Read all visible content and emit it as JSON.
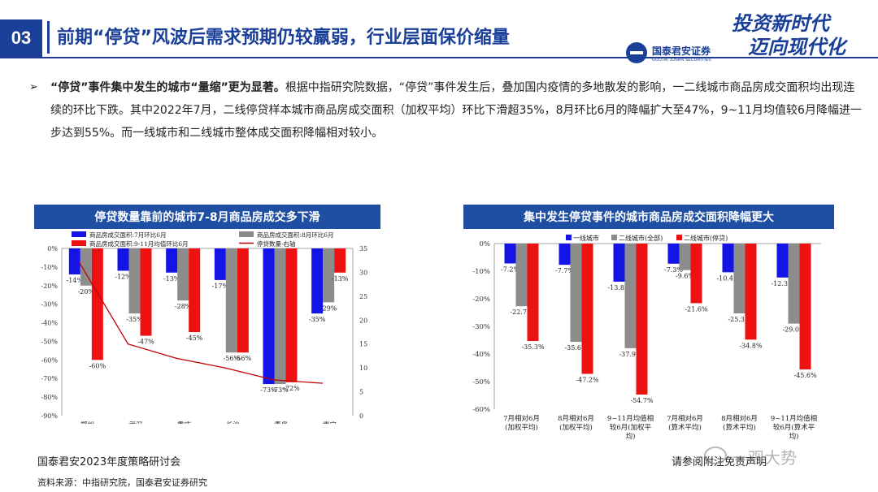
{
  "header": {
    "section_number": "03",
    "title": "前期“停贷”风波后需求预期仍较羸弱，行业层面保价缩量",
    "logo_cn": "国泰君安证券",
    "logo_en": "GUOTAI JUNAN SECURITIES",
    "slogan_line1": "投资新时代",
    "slogan_line2": "迈向现代化"
  },
  "body": {
    "bullet_symbol": "➢",
    "bold_lead": "“停贷”事件集中发生的城市“量缩”更为显著。",
    "text": "根据中指研究院数据，“停贷”事件发生后，叠加国内疫情的多地散发的影响，一二线城市商品房成交面积均出现连续的环比下跌。其中2022年7月，二线停贷样本城市商品房成交面积（加权平均）环比下滑超35%，8月环比6月的降幅扩大至47%，9~11月均值较6月降幅进一步达到55%。而一线城市和二线城市整体成交面积降幅相对较小。"
  },
  "footer": {
    "event": "国泰君安2023年度策略研讨会",
    "source": "资料来源：中指研究院，国泰君安证券研究",
    "disclaimer": "请参阅附注免责声明",
    "watermark": "一观大势"
  },
  "chart_data": [
    {
      "type": "bar",
      "title": "停贷数量靠前的城市7-8月商品房成交多下滑",
      "categories": [
        "郑州",
        "武汉",
        "重庆",
        "长沙",
        "青岛",
        "南宁"
      ],
      "series": [
        {
          "name": "商品房成交面积:7月环比6月",
          "color": "#1414e6",
          "values": [
            -14,
            -12,
            -13,
            -17,
            -73,
            -35
          ]
        },
        {
          "name": "商品房成交面积:8月环比6月",
          "color": "#8c8c8c",
          "values": [
            -20,
            -35,
            -28,
            -56,
            -73,
            -29
          ]
        },
        {
          "name": "商品房成交面积:9-11月均值环比6月",
          "color": "#ee1111",
          "values": [
            -60,
            -47,
            -45,
            -56,
            -72,
            -13
          ]
        }
      ],
      "line_series": {
        "name": "停贷数量-右轴",
        "color": "#c00000",
        "values": [
          32,
          15,
          12,
          10,
          7.5,
          6.8
        ]
      },
      "y_ticks_left": [
        "0%",
        "-10%",
        "-20%",
        "-30%",
        "-40%",
        "-50%",
        "-60%",
        "-70%",
        "-80%",
        "-90%"
      ],
      "y_ticks_right": [
        "35",
        "30",
        "25",
        "20",
        "15",
        "10",
        "5",
        "0"
      ],
      "ylim": [
        -90,
        0
      ],
      "ylim_right": [
        0,
        35
      ]
    },
    {
      "type": "bar",
      "title": "集中发生停贷事件的城市商品房成交面积降幅更大",
      "categories": [
        "7月相对6月\n(加权平均)",
        "8月相对6月\n(加权平均)",
        "9~11月均值相\n较6月(加权平\n均)",
        "7月相对6月\n(算术平均)",
        "8月相对6月\n(算术平均)",
        "9~11月均值相\n较6月(算术平\n均)"
      ],
      "series": [
        {
          "name": "一线城市",
          "color": "#1414e6",
          "values": [
            -7.2,
            -7.7,
            -13.8,
            -7.3,
            -10.4,
            -12.3
          ]
        },
        {
          "name": "二线城市(全部)",
          "color": "#8c8c8c",
          "values": [
            -22.7,
            -35.6,
            -37.9,
            -9.6,
            -25.3,
            -29.0
          ]
        },
        {
          "name": "二线城市(停贷)",
          "color": "#ee1111",
          "values": [
            -35.3,
            -47.2,
            -54.7,
            -21.6,
            -34.8,
            -45.6
          ]
        }
      ],
      "y_ticks": [
        "0%",
        "-10%",
        "-20%",
        "-30%",
        "-40%",
        "-50%",
        "-60%"
      ],
      "ylim": [
        -60,
        0
      ]
    }
  ]
}
